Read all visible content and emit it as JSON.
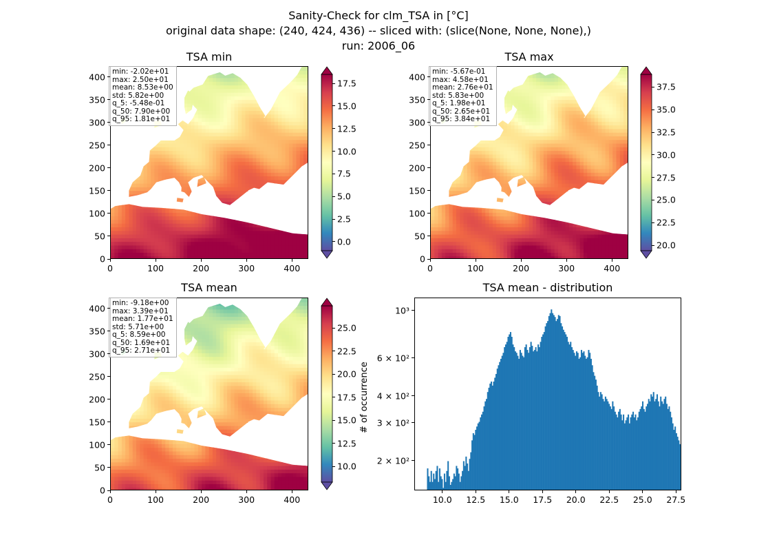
{
  "figure": {
    "title_lines": [
      "Sanity-Check for clm_TSA in [°C]",
      "original data shape: (240, 424, 436) -- sliced with: (slice(None, None, None),)",
      "run: 2006_06"
    ]
  },
  "colormap": [
    "#5e4fa2",
    "#3288bd",
    "#66c2a5",
    "#abdda4",
    "#e6f598",
    "#ffffbf",
    "#fee08b",
    "#fdae61",
    "#f46d43",
    "#d53e4f",
    "#9e0142"
  ],
  "chart_data": [
    {
      "type": "heatmap",
      "title": "TSA min",
      "xlim": [
        0,
        436
      ],
      "ylim": [
        0,
        424
      ],
      "xticks": [
        "0",
        "100",
        "200",
        "300",
        "400"
      ],
      "yticks": [
        "0",
        "50",
        "100",
        "150",
        "200",
        "250",
        "300",
        "350",
        "400"
      ],
      "stats": [
        "min: -2.02e+01",
        "max: 2.50e+01",
        "mean: 8.53e+00",
        "std: 5.82e+00",
        "q_5: -5.48e-01",
        "q_50: 7.90e+00",
        "q_95: 1.81e+01"
      ],
      "colorbar": {
        "range": [
          -1.0,
          18.5
        ],
        "ticks": [
          "0.0",
          "2.5",
          "5.0",
          "7.5",
          "10.0",
          "12.5",
          "15.0",
          "17.5"
        ],
        "tick_values": [
          0,
          2.5,
          5,
          7.5,
          10,
          12.5,
          15,
          17.5
        ]
      }
    },
    {
      "type": "heatmap",
      "title": "TSA max",
      "xlim": [
        0,
        436
      ],
      "ylim": [
        0,
        424
      ],
      "xticks": [
        "0",
        "100",
        "200",
        "300",
        "400"
      ],
      "yticks": [
        "0",
        "50",
        "100",
        "150",
        "200",
        "250",
        "300",
        "350",
        "400"
      ],
      "stats": [
        "min: -5.67e-01",
        "max: 4.58e+01",
        "mean: 2.76e+01",
        "std: 5.83e+00",
        "q_5: 1.98e+01",
        "q_50: 2.65e+01",
        "q_95: 3.84e+01"
      ],
      "colorbar": {
        "range": [
          19.4,
          38.9
        ],
        "ticks": [
          "20.0",
          "22.5",
          "25.0",
          "27.5",
          "30.0",
          "32.5",
          "35.0",
          "37.5"
        ],
        "tick_values": [
          20,
          22.5,
          25,
          27.5,
          30,
          32.5,
          35,
          37.5
        ]
      }
    },
    {
      "type": "heatmap",
      "title": "TSA mean",
      "xlim": [
        0,
        436
      ],
      "ylim": [
        0,
        424
      ],
      "xticks": [
        "0",
        "100",
        "200",
        "300",
        "400"
      ],
      "yticks": [
        "0",
        "50",
        "100",
        "150",
        "200",
        "250",
        "300",
        "350",
        "400"
      ],
      "stats": [
        "min: -9.18e+00",
        "max: 3.39e+01",
        "mean: 1.77e+01",
        "std: 5.71e+00",
        "q_5: 8.59e+00",
        "q_50: 1.69e+01",
        "q_95: 2.71e+01"
      ],
      "colorbar": {
        "range": [
          8.3,
          27.4
        ],
        "ticks": [
          "10.0",
          "12.5",
          "15.0",
          "17.5",
          "20.0",
          "22.5",
          "25.0"
        ],
        "tick_values": [
          10,
          12.5,
          15,
          17.5,
          20,
          22.5,
          25
        ]
      }
    },
    {
      "type": "bar",
      "title": "TSA mean - distribution",
      "ylabel": "# of occurrence",
      "yscale": "log",
      "xlim": [
        7.9,
        27.9
      ],
      "ylim": [
        145,
        1150
      ],
      "xticks": [
        "10.0",
        "12.5",
        "15.0",
        "17.5",
        "20.0",
        "22.5",
        "25.0",
        "27.5"
      ],
      "xtick_values": [
        10,
        12.5,
        15,
        17.5,
        20,
        22.5,
        25,
        27.5
      ],
      "yticks": [
        "2 × 10²",
        "3 × 10²",
        "4 × 10²",
        "6 × 10²",
        "10³"
      ],
      "ytick_values": [
        200,
        300,
        400,
        600,
        1000
      ],
      "bar_color": "#1f77b4",
      "bins": {
        "start": 8.8,
        "width": 0.09
      },
      "counts": [
        185,
        170,
        160,
        180,
        160,
        175,
        165,
        180,
        190,
        160,
        185,
        170,
        165,
        150,
        175,
        160,
        180,
        200,
        170,
        155,
        160,
        165,
        175,
        170,
        190,
        185,
        175,
        160,
        170,
        180,
        200,
        190,
        210,
        195,
        180,
        205,
        220,
        250,
        270,
        265,
        280,
        290,
        300,
        305,
        320,
        330,
        340,
        360,
        380,
        390,
        420,
        440,
        460,
        470,
        450,
        470,
        490,
        510,
        540,
        560,
        580,
        600,
        620,
        640,
        680,
        700,
        720,
        760,
        780,
        800,
        760,
        700,
        680,
        650,
        640,
        620,
        600,
        660,
        640,
        620,
        610,
        680,
        700,
        660,
        640,
        680,
        720,
        690,
        650,
        660,
        680,
        650,
        700,
        680,
        720,
        760,
        780,
        800,
        850,
        880,
        900,
        950,
        980,
        1020,
        980,
        960,
        940,
        900,
        920,
        960,
        950,
        880,
        850,
        820,
        800,
        780,
        760,
        720,
        700,
        720,
        680,
        660,
        640,
        620,
        650,
        640,
        600,
        610,
        660,
        640,
        650,
        620,
        600,
        610,
        660,
        640,
        600,
        560,
        520,
        500,
        480,
        450,
        420,
        400,
        420,
        410,
        390,
        380,
        400,
        390,
        380,
        370,
        360,
        350,
        380,
        360,
        340,
        330,
        320,
        340,
        350,
        330,
        310,
        330,
        300,
        310,
        320,
        330,
        300,
        320,
        330,
        340,
        320,
        330,
        310,
        320,
        340,
        350,
        360,
        380,
        350,
        340,
        360,
        370,
        390,
        380,
        410,
        400,
        420,
        380,
        390,
        410,
        380,
        360,
        400,
        380,
        370,
        390,
        400,
        370,
        350,
        360,
        340,
        320,
        300,
        280,
        290,
        270,
        260,
        250,
        240,
        235,
        230,
        210,
        220,
        200
      ]
    }
  ]
}
